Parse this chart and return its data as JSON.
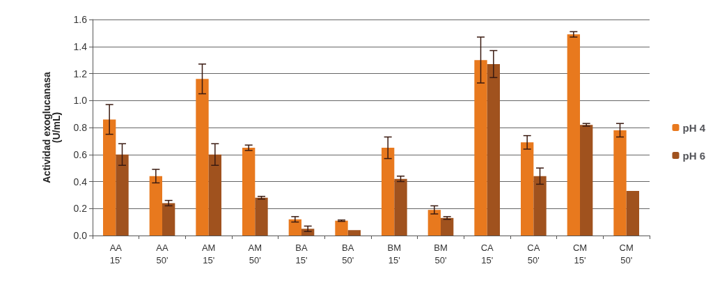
{
  "chart_data": {
    "type": "bar",
    "ylabel": "Actividad exoglucanasa\n(U/mL)",
    "categories": [
      "AA\n15'",
      "AA\n50'",
      "AM\n15'",
      "AM\n50'",
      "BA\n15'",
      "BA\n50'",
      "BM\n15'",
      "BM\n50'",
      "CA\n15'",
      "CA\n50'",
      "CM\n15'",
      "CM\n50'"
    ],
    "series": [
      {
        "name": "pH 4",
        "color": "#e8791e",
        "values": [
          0.86,
          0.44,
          1.16,
          0.65,
          0.12,
          0.11,
          0.65,
          0.19,
          1.3,
          0.69,
          1.49,
          0.78
        ],
        "errors": [
          0.11,
          0.05,
          0.11,
          0.02,
          0.02,
          0.005,
          0.08,
          0.03,
          0.17,
          0.05,
          0.02,
          0.05
        ]
      },
      {
        "name": "pH 6",
        "color": "#a0521e",
        "values": [
          0.6,
          0.24,
          0.6,
          0.28,
          0.05,
          0.04,
          0.42,
          0.13,
          1.27,
          0.44,
          0.82,
          0.33
        ],
        "errors": [
          0.08,
          0.02,
          0.08,
          0.01,
          0.02,
          null,
          0.02,
          0.01,
          0.1,
          0.06,
          0.01,
          null
        ]
      }
    ],
    "ylim": [
      0,
      1.6
    ],
    "yticks": [
      {
        "value": 0,
        "label": "0.0"
      },
      {
        "value": 0.2,
        "label": "0.2"
      },
      {
        "value": 0.4,
        "label": "0.4"
      },
      {
        "value": 0.6,
        "label": "0.6"
      },
      {
        "value": 0.8,
        "label": "0.8"
      },
      {
        "value": 1,
        "label": "1.0"
      },
      {
        "value": 1.2,
        "label": "1.2"
      },
      {
        "value": 1.4,
        "label": "1.4"
      },
      {
        "value": 1.6,
        "label": "1.6"
      }
    ],
    "grid": "y",
    "legend": "right"
  }
}
